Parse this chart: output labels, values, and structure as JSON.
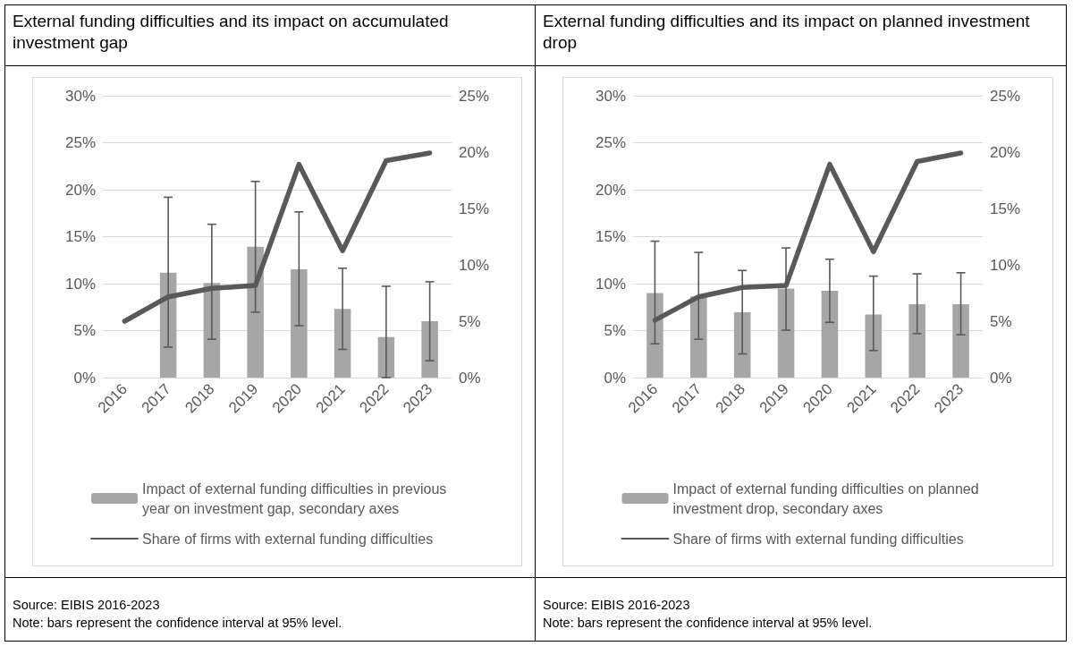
{
  "chart_data": [
    {
      "type": "bar",
      "title": "External funding difficulties and its impact on accumulated investment gap",
      "categories": [
        "2016",
        "2017",
        "2018",
        "2019",
        "2020",
        "2021",
        "2022",
        "2023"
      ],
      "series": [
        {
          "axis": "y2",
          "name": "Impact of external funding difficulties in previous year on investment gap, secondary axes",
          "color": "#a6a6a6",
          "values": [
            null,
            9.3,
            8.4,
            11.6,
            9.6,
            6.1,
            3.6,
            5.0
          ],
          "errors": [
            null,
            [
              2.7,
              16.0
            ],
            [
              3.4,
              13.6
            ],
            [
              5.8,
              17.4
            ],
            [
              4.6,
              14.7
            ],
            [
              2.5,
              9.7
            ],
            [
              0,
              8.1
            ],
            [
              1.5,
              8.5
            ]
          ]
        },
        {
          "type": "line",
          "name": "Share of firms with external funding difficulties",
          "color": "#595959",
          "values": [
            6.0,
            8.6,
            9.5,
            9.8,
            22.7,
            13.5,
            23.1,
            23.9
          ]
        }
      ],
      "ylim": [
        0,
        30
      ],
      "yticks": [
        {
          "value": 0,
          "label": "0%"
        },
        {
          "value": 5,
          "label": "5%"
        },
        {
          "value": 10,
          "label": "10%"
        },
        {
          "value": 15,
          "label": "15%"
        },
        {
          "value": 20,
          "label": "20%"
        },
        {
          "value": 25,
          "label": "25%"
        },
        {
          "value": 30,
          "label": "30%"
        }
      ],
      "y2lim": [
        0,
        25
      ],
      "y2ticks": [
        {
          "value": 0,
          "label": "0%"
        },
        {
          "value": 5,
          "label": "5%"
        },
        {
          "value": 10,
          "label": "10%"
        },
        {
          "value": 15,
          "label": "15%"
        },
        {
          "value": 20,
          "label": "20%"
        },
        {
          "value": 25,
          "label": "25%"
        }
      ],
      "grid": "y",
      "legend": "bottom",
      "marker": "none",
      "line_style": "solid",
      "annotations": [
        "Source: EIBIS 2016-2023",
        "Note: bars represent the confidence interval at 95% level."
      ]
    },
    {
      "type": "bar",
      "title": "External funding difficulties and its impact on planned investment drop",
      "categories": [
        "2016",
        "2017",
        "2018",
        "2019",
        "2020",
        "2021",
        "2022",
        "2023"
      ],
      "series": [
        {
          "axis": "y2",
          "name": "Impact of external funding difficulties on planned investment drop, secondary axes",
          "color": "#a6a6a6",
          "values": [
            7.5,
            7.2,
            5.8,
            7.9,
            7.7,
            5.6,
            6.5,
            6.5
          ],
          "errors": [
            [
              3.0,
              12.1
            ],
            [
              3.4,
              11.1
            ],
            [
              2.1,
              9.5
            ],
            [
              4.2,
              11.5
            ],
            [
              4.9,
              10.5
            ],
            [
              2.4,
              9.0
            ],
            [
              3.9,
              9.2
            ],
            [
              3.8,
              9.3
            ]
          ]
        },
        {
          "type": "line",
          "name": "Share of firms with external funding difficulties",
          "color": "#595959",
          "values": [
            6.1,
            8.6,
            9.6,
            9.8,
            22.7,
            13.4,
            23.0,
            23.9
          ]
        }
      ],
      "ylim": [
        0,
        30
      ],
      "yticks": [
        {
          "value": 0,
          "label": "0%"
        },
        {
          "value": 5,
          "label": "5%"
        },
        {
          "value": 10,
          "label": "10%"
        },
        {
          "value": 15,
          "label": "15%"
        },
        {
          "value": 20,
          "label": "20%"
        },
        {
          "value": 25,
          "label": "25%"
        },
        {
          "value": 30,
          "label": "30%"
        }
      ],
      "y2lim": [
        0,
        25
      ],
      "y2ticks": [
        {
          "value": 0,
          "label": "0%"
        },
        {
          "value": 5,
          "label": "5%"
        },
        {
          "value": 10,
          "label": "10%"
        },
        {
          "value": 15,
          "label": "15%"
        },
        {
          "value": 20,
          "label": "20%"
        },
        {
          "value": 25,
          "label": "25%"
        }
      ],
      "grid": "y",
      "legend": "bottom",
      "marker": "none",
      "line_style": "solid",
      "annotations": [
        "Source: EIBIS 2016-2023",
        "Note: bars represent the confidence interval at 95% level."
      ]
    }
  ]
}
